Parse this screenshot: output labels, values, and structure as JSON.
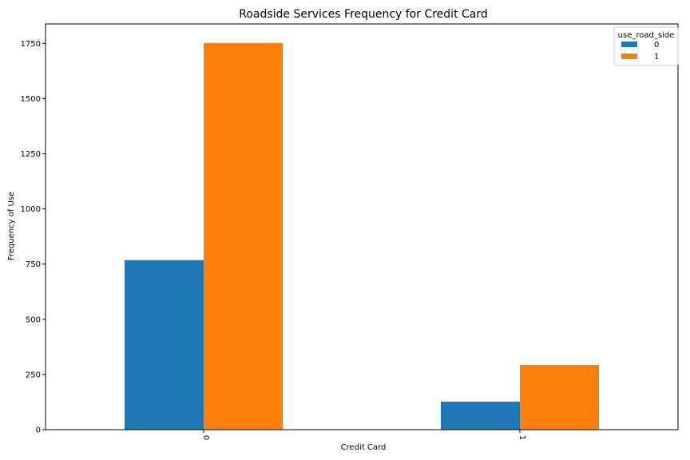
{
  "chart_data": {
    "type": "bar",
    "title": "Roadside Services Frequency for Credit Card",
    "xlabel": "Credit Card",
    "ylabel": "Frequency of Use",
    "categories": [
      "0",
      "1"
    ],
    "series": [
      {
        "name": "0",
        "values": [
          768,
          127
        ],
        "color": "#1f77b4"
      },
      {
        "name": "1",
        "values": [
          1752,
          293
        ],
        "color": "#ff7f0e"
      }
    ],
    "ylim": [
      0,
      1838
    ],
    "yticks": [
      0,
      250,
      500,
      750,
      1000,
      1250,
      1500,
      1750
    ],
    "legend": {
      "title": "use_road_side",
      "placement": "top-right"
    },
    "grid": false
  }
}
